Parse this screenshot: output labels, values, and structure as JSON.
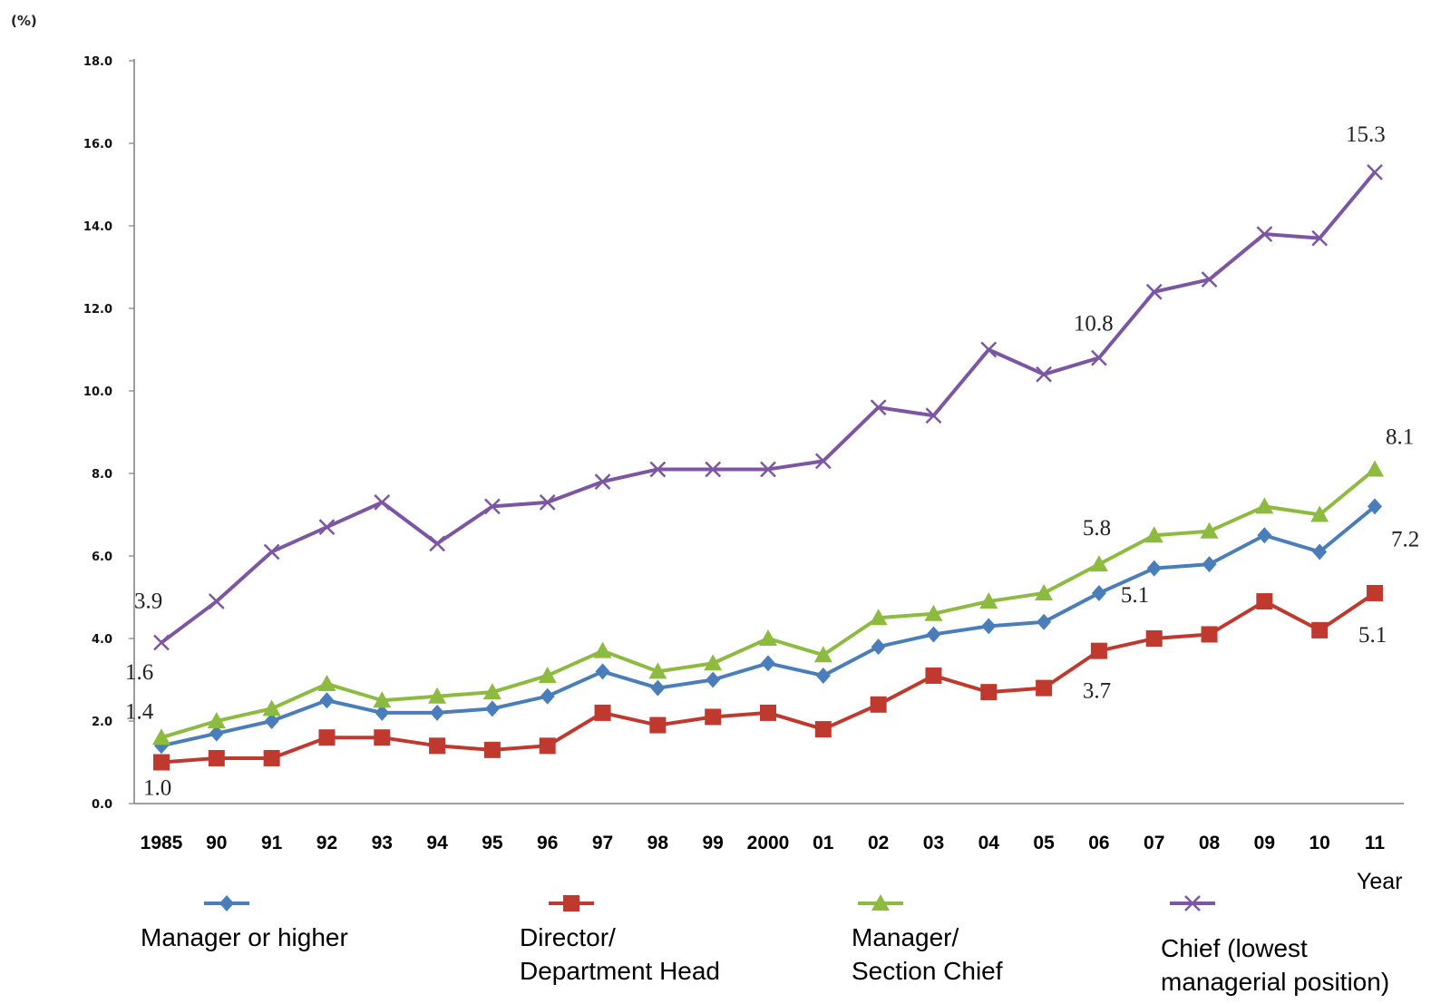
{
  "chart_data": {
    "type": "line",
    "yunit": "(%)",
    "xlabel": "Year",
    "ylim": [
      0,
      18
    ],
    "yticks": [
      "0.0",
      "2.0",
      "4.0",
      "6.0",
      "8.0",
      "10.0",
      "12.0",
      "14.0",
      "16.0",
      "18.0"
    ],
    "categories": [
      "1985",
      "90",
      "91",
      "92",
      "93",
      "94",
      "95",
      "96",
      "97",
      "98",
      "99",
      "2000",
      "01",
      "02",
      "03",
      "04",
      "05",
      "06",
      "07",
      "08",
      "09",
      "10",
      "11"
    ],
    "series": [
      {
        "name": "Manager or higher",
        "color": "#4a7ebb",
        "marker": "diamond",
        "values": [
          1.4,
          1.7,
          2.0,
          2.5,
          2.2,
          2.2,
          2.3,
          2.6,
          3.2,
          2.8,
          3.0,
          3.4,
          3.1,
          3.8,
          4.1,
          4.3,
          4.4,
          5.1,
          5.7,
          5.8,
          6.5,
          6.1,
          7.2
        ]
      },
      {
        "name": "Director/\nDepartment Head",
        "color": "#c0392f",
        "marker": "square",
        "values": [
          1.0,
          1.1,
          1.1,
          1.6,
          1.6,
          1.4,
          1.3,
          1.4,
          2.2,
          1.9,
          2.1,
          2.2,
          1.8,
          2.4,
          3.1,
          2.7,
          2.8,
          3.7,
          4.0,
          4.1,
          4.9,
          4.2,
          5.1
        ]
      },
      {
        "name": "Manager/\nSection Chief",
        "color": "#8dbb3f",
        "marker": "triangle",
        "values": [
          1.6,
          2.0,
          2.3,
          2.9,
          2.5,
          2.6,
          2.7,
          3.1,
          3.7,
          3.2,
          3.4,
          4.0,
          3.6,
          4.5,
          4.6,
          4.9,
          5.1,
          5.8,
          6.5,
          6.6,
          7.2,
          7.0,
          8.1
        ]
      },
      {
        "name": "Chief (lowest\nmanagerial position)",
        "color": "#7c56a3",
        "marker": "x",
        "values": [
          3.9,
          4.9,
          6.1,
          6.7,
          7.3,
          6.3,
          7.2,
          7.3,
          7.8,
          8.1,
          8.1,
          8.1,
          8.3,
          9.6,
          9.4,
          11.0,
          10.4,
          10.8,
          12.4,
          12.7,
          13.8,
          13.7,
          15.3
        ]
      }
    ],
    "annotations": [
      {
        "text": "3.9",
        "series": 3,
        "index": 0
      },
      {
        "text": "1.6",
        "series": 2,
        "index": 0
      },
      {
        "text": "1.4",
        "series": 0,
        "index": 0
      },
      {
        "text": "1.0",
        "series": 1,
        "index": 0
      },
      {
        "text": "10.8",
        "series": 3,
        "index": 17
      },
      {
        "text": "5.8",
        "series": 2,
        "index": 17
      },
      {
        "text": "5.1",
        "series": 0,
        "index": 17
      },
      {
        "text": "3.7",
        "series": 1,
        "index": 17
      },
      {
        "text": "15.3",
        "series": 3,
        "index": 22
      },
      {
        "text": "8.1",
        "series": 2,
        "index": 22
      },
      {
        "text": "7.2",
        "series": 0,
        "index": 22
      },
      {
        "text": "5.1",
        "series": 1,
        "index": 22
      }
    ],
    "grid": false,
    "legend_position": "bottom"
  }
}
